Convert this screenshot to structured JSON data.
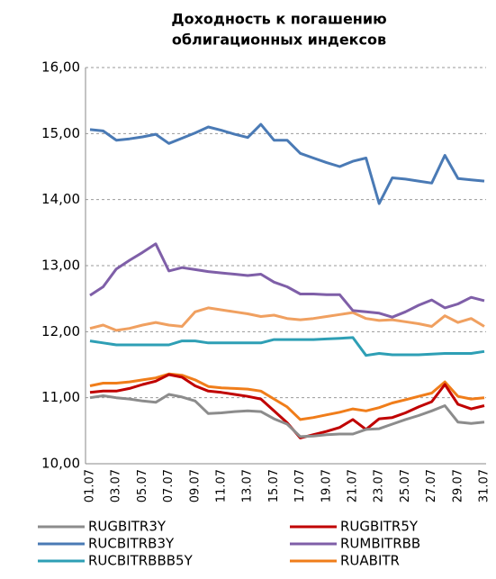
{
  "chart_data": {
    "type": "line",
    "title": [
      "Доходность к погашению",
      "облигационных индексов"
    ],
    "categories": [
      "01.07",
      null,
      "03.07",
      null,
      "05.07",
      null,
      "07.07",
      null,
      "09.07",
      null,
      "11.07",
      null,
      "13.07",
      null,
      "15.07",
      null,
      "17.07",
      null,
      "19.07",
      null,
      "21.07",
      null,
      "23.07",
      null,
      "25.07",
      null,
      "27.07",
      null,
      "29.07",
      null,
      "31.07"
    ],
    "ylim": [
      10,
      16
    ],
    "yticks": [
      {
        "value": 10,
        "label": "10,00"
      },
      {
        "value": 11,
        "label": "11,00"
      },
      {
        "value": 12,
        "label": "12,00"
      },
      {
        "value": 13,
        "label": "13,00"
      },
      {
        "value": 14,
        "label": "14,00"
      },
      {
        "value": 15,
        "label": "15,00"
      },
      {
        "value": 16,
        "label": "16,00"
      }
    ],
    "grid": true,
    "series": [
      {
        "name": "RUGBITR3Y",
        "color": "#8c8c8c",
        "values": [
          11.0,
          11.03,
          11.0,
          10.98,
          10.95,
          10.93,
          11.05,
          11.01,
          10.95,
          10.76,
          10.77,
          10.79,
          10.8,
          10.79,
          10.68,
          10.6,
          10.41,
          10.42,
          10.44,
          10.45,
          10.45,
          10.52,
          10.53,
          10.6,
          10.67,
          10.73,
          10.8,
          10.88,
          10.63,
          10.61,
          10.63
        ]
      },
      {
        "name": "RUGBITR5Y",
        "color": "#c00000",
        "values": [
          11.08,
          11.1,
          11.1,
          11.14,
          11.2,
          11.25,
          11.35,
          11.31,
          11.18,
          11.1,
          11.08,
          11.05,
          11.02,
          10.98,
          10.8,
          10.62,
          10.39,
          10.44,
          10.49,
          10.55,
          10.67,
          10.52,
          10.68,
          10.7,
          10.77,
          10.86,
          10.94,
          11.2,
          10.9,
          10.83,
          10.88
        ]
      },
      {
        "name": "RUCBITRB3Y",
        "color": "#4a7ab5",
        "values": [
          15.06,
          15.04,
          14.9,
          14.92,
          14.95,
          14.99,
          14.85,
          14.93,
          15.01,
          15.1,
          15.05,
          14.99,
          14.94,
          15.14,
          14.9,
          14.9,
          14.7,
          14.63,
          14.56,
          14.5,
          14.58,
          14.63,
          13.94,
          14.33,
          14.31,
          14.28,
          14.25,
          14.67,
          14.32,
          14.3,
          14.28
        ]
      },
      {
        "name": "RUMBITRBB",
        "color": "#7f5fa8",
        "values": [
          12.55,
          12.68,
          12.95,
          13.08,
          13.2,
          13.33,
          12.92,
          12.97,
          12.94,
          12.91,
          12.89,
          12.87,
          12.85,
          12.87,
          12.75,
          12.68,
          12.57,
          12.57,
          12.56,
          12.56,
          12.32,
          12.3,
          12.28,
          12.22,
          12.3,
          12.4,
          12.48,
          12.36,
          12.42,
          12.52,
          12.47
        ]
      },
      {
        "name": "RUCBITRBBB5Y",
        "color": "#2e9fb5",
        "values": [
          11.86,
          11.83,
          11.8,
          11.8,
          11.8,
          11.8,
          11.8,
          11.86,
          11.86,
          11.83,
          11.83,
          11.83,
          11.83,
          11.83,
          11.88,
          11.88,
          11.88,
          11.88,
          11.89,
          11.9,
          11.91,
          11.64,
          11.67,
          11.65,
          11.65,
          11.65,
          11.66,
          11.67,
          11.67,
          11.67,
          11.7
        ]
      },
      {
        "name": "RUABITR",
        "color": "#f07d1a",
        "values": [
          11.18,
          11.22,
          11.22,
          11.24,
          11.27,
          11.3,
          11.36,
          11.34,
          11.27,
          11.17,
          11.15,
          11.14,
          11.13,
          11.1,
          10.98,
          10.86,
          10.67,
          10.7,
          10.74,
          10.78,
          10.83,
          10.8,
          10.85,
          10.92,
          10.97,
          11.02,
          11.07,
          11.24,
          11.02,
          10.98,
          11.0
        ]
      },
      {
        "color": "#f0a060",
        "values": [
          12.05,
          12.1,
          12.02,
          12.05,
          12.1,
          12.14,
          12.1,
          12.08,
          12.3,
          12.36,
          12.33,
          12.3,
          12.27,
          12.23,
          12.25,
          12.2,
          12.18,
          12.2,
          12.23,
          12.26,
          12.29,
          12.2,
          12.17,
          12.18,
          12.15,
          12.12,
          12.08,
          12.24,
          12.14,
          12.2,
          12.08
        ]
      }
    ]
  }
}
